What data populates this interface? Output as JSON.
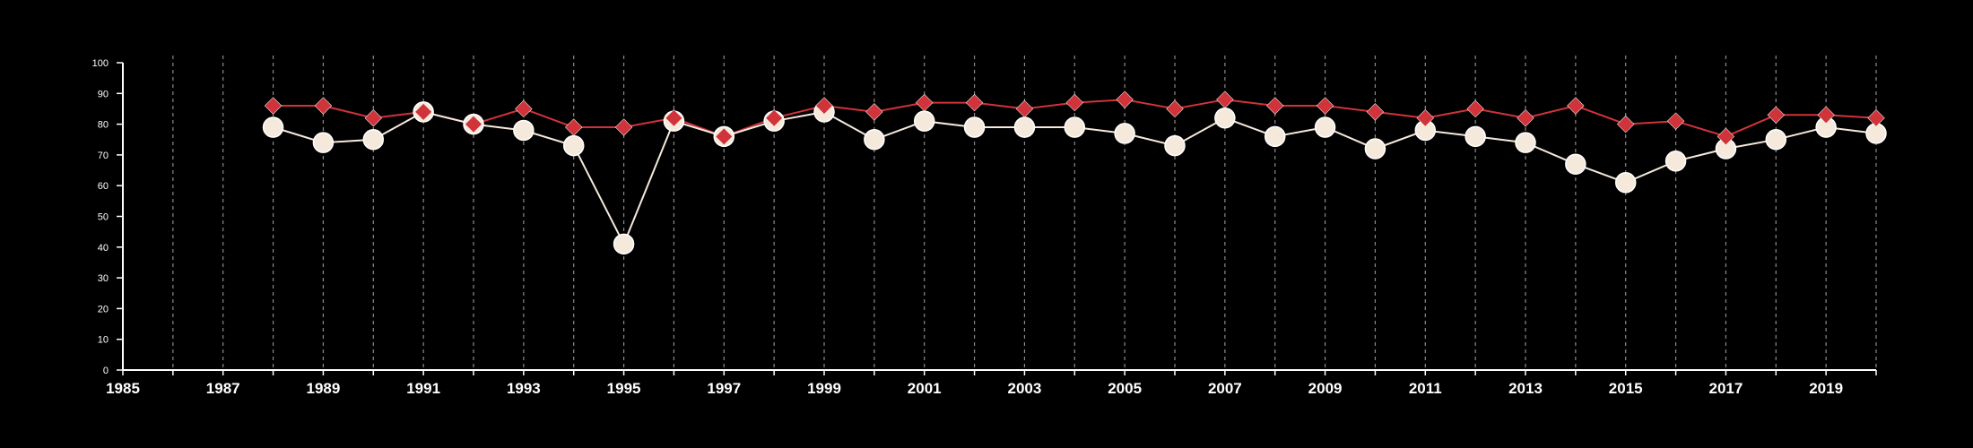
{
  "chart_data": {
    "type": "line",
    "title": "",
    "xlabel": "",
    "ylabel": "",
    "xlim": [
      1985,
      2020
    ],
    "ylim": [
      0,
      100
    ],
    "grid": {
      "x": "dashed",
      "y": false
    },
    "x_ticks": [
      "1985",
      "1987",
      "1989",
      "1991",
      "1993",
      "1995",
      "1997",
      "1999",
      "2001",
      "2003",
      "2005",
      "2007",
      "2009",
      "2011",
      "2013",
      "2015",
      "2017",
      "2019"
    ],
    "y_ticks": [
      "0",
      "10",
      "20",
      "30",
      "40",
      "50",
      "60",
      "70",
      "80",
      "90",
      "100"
    ],
    "x": [
      1988,
      1989,
      1990,
      1991,
      1992,
      1993,
      1994,
      1995,
      1996,
      1997,
      1998,
      1999,
      2000,
      2001,
      2002,
      2003,
      2004,
      2005,
      2006,
      2007,
      2008,
      2009,
      2010,
      2011,
      2012,
      2013,
      2014,
      2015,
      2016,
      2017,
      2018,
      2019,
      2020
    ],
    "series": [
      {
        "marker": "diamond",
        "color": "#d0333a",
        "values": [
          86,
          86,
          82,
          84,
          80,
          85,
          79,
          79,
          82,
          76,
          82,
          86,
          84,
          87,
          87,
          85,
          87,
          88,
          85,
          88,
          86,
          86,
          84,
          82,
          85,
          82,
          86,
          80,
          81,
          76,
          83,
          83,
          82
        ]
      },
      {
        "marker": "circle",
        "color": "#f5e9dc",
        "values": [
          79,
          74,
          75,
          84,
          80,
          78,
          73,
          41,
          81,
          76,
          81,
          84,
          75,
          81,
          79,
          79,
          79,
          77,
          73,
          82,
          76,
          79,
          72,
          78,
          76,
          74,
          67,
          61,
          68,
          72,
          75,
          79,
          77
        ]
      }
    ]
  }
}
